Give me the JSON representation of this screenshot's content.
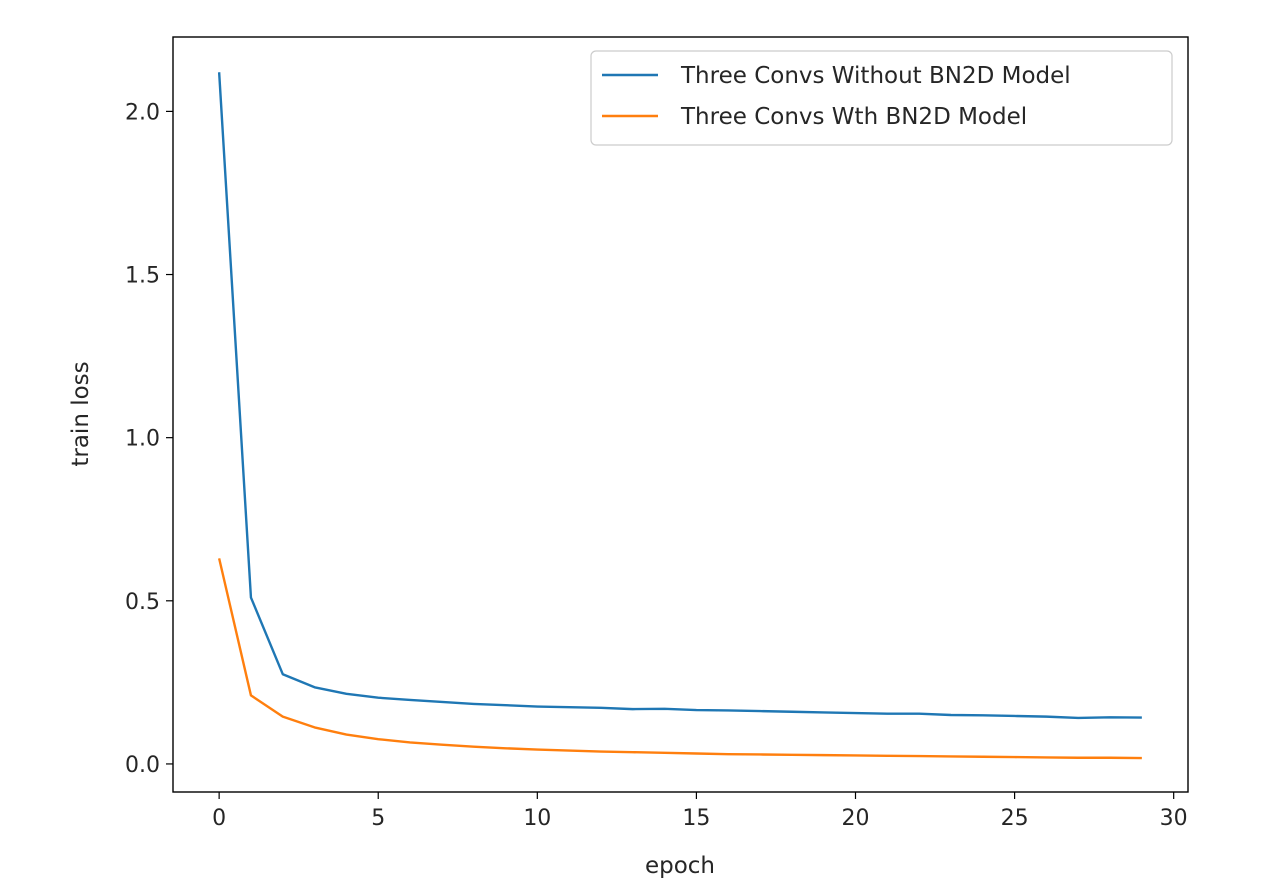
{
  "chart_data": {
    "type": "line",
    "title": "",
    "xlabel": "epoch",
    "ylabel": "train loss",
    "xlim": [
      -1.45,
      30.45
    ],
    "ylim": [
      -0.086,
      2.228
    ],
    "xticks": [
      0,
      5,
      10,
      15,
      20,
      25,
      30
    ],
    "yticks": [
      0.0,
      0.5,
      1.0,
      1.5,
      2.0
    ],
    "xtick_labels": [
      "0",
      "5",
      "10",
      "15",
      "20",
      "25",
      "30"
    ],
    "ytick_labels": [
      "0.0",
      "0.5",
      "1.0",
      "1.5",
      "2.0"
    ],
    "grid": false,
    "legend_position": "top-right",
    "x": [
      0,
      1,
      2,
      3,
      4,
      5,
      6,
      7,
      8,
      9,
      10,
      11,
      12,
      13,
      14,
      15,
      16,
      17,
      18,
      19,
      20,
      21,
      22,
      23,
      24,
      25,
      26,
      27,
      28,
      29
    ],
    "series": [
      {
        "name": "Three Convs Without BN2D Model",
        "color": "#1f77b4",
        "values": [
          2.12,
          0.51,
          0.275,
          0.235,
          0.215,
          0.203,
          0.196,
          0.19,
          0.184,
          0.18,
          0.176,
          0.174,
          0.172,
          0.168,
          0.169,
          0.165,
          0.164,
          0.162,
          0.16,
          0.158,
          0.156,
          0.154,
          0.154,
          0.15,
          0.149,
          0.147,
          0.145,
          0.141,
          0.143,
          0.142
        ]
      },
      {
        "name": "Three Convs Wth BN2D Model",
        "color": "#ff7f0e",
        "values": [
          0.63,
          0.21,
          0.145,
          0.112,
          0.09,
          0.076,
          0.066,
          0.059,
          0.053,
          0.048,
          0.044,
          0.041,
          0.038,
          0.036,
          0.034,
          0.032,
          0.03,
          0.029,
          0.028,
          0.027,
          0.026,
          0.025,
          0.024,
          0.023,
          0.022,
          0.021,
          0.02,
          0.019,
          0.019,
          0.018
        ]
      }
    ]
  }
}
